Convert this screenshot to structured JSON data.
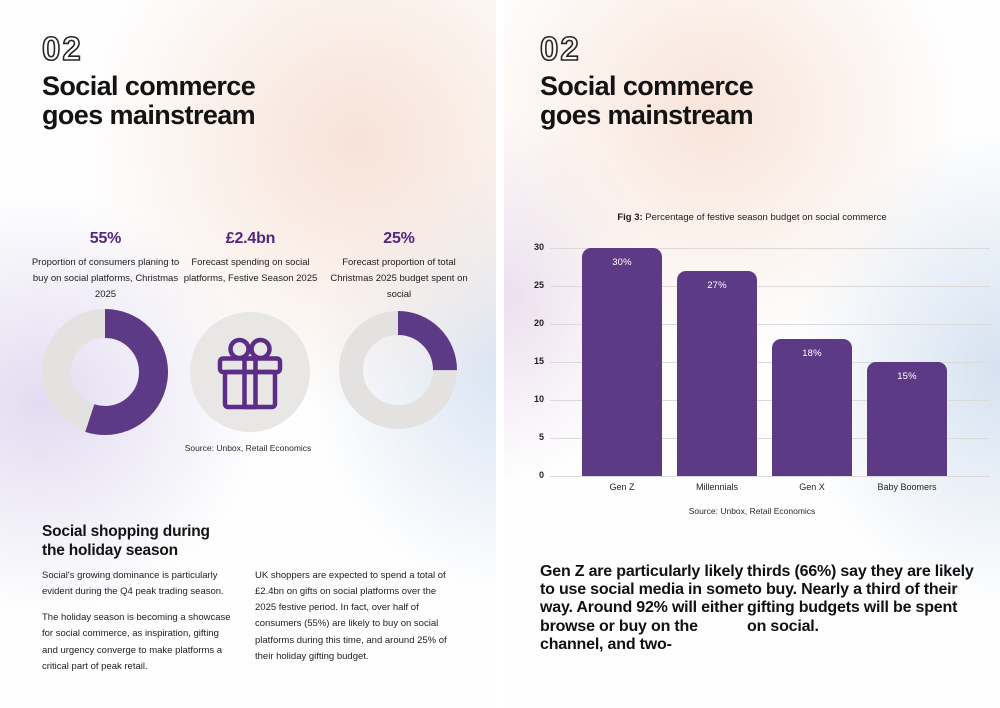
{
  "colors": {
    "accent_purple": "#5C3A85",
    "stat_purple": "#53277D",
    "donut_gray": "#E4E2E0",
    "gift_circle_gray": "#E8E7E5"
  },
  "page_left": {
    "chapter_number": "02",
    "title_line1": "Social commerce",
    "title_line2": "goes mainstream",
    "stats": [
      {
        "value": "55%",
        "description": "Proportion of consumers planing to buy on social platforms, Christmas 2025",
        "percent": 55
      },
      {
        "value": "£2.4bn",
        "description": "Forecast spending on social platforms, Festive Season 2025",
        "icon": "gift-icon"
      },
      {
        "value": "25%",
        "description": "Forecast proportion of total Christmas 2025 budget spent on social",
        "percent": 25
      }
    ],
    "source": "Source: Unbox, Retail Economics",
    "section_heading_line1": "Social shopping during",
    "section_heading_line2": "the holiday season",
    "col1_para1": "Social's growing dominance is particularly evident during the Q4 peak trading season.",
    "col1_para2": "The holiday season is becoming a showcase for social commerce, as inspiration, gifting and urgency converge to make platforms a critical part of peak retail.",
    "col2_para1": "UK shoppers are expected to spend a total of £2.4bn on gifts on social platforms over the 2025 festive period. In fact, over half of consumers (55%) are likely to buy on social platforms during this time, and around 25% of their holiday gifting budget."
  },
  "page_right": {
    "chapter_number": "02",
    "title_line1": "Social commerce",
    "title_line2": "goes mainstream",
    "fig_label": "Fig 3:",
    "fig_caption": " Percentage of festive season budget on social commerce",
    "source": "Source: Unbox, Retail Economics",
    "para_left": "Gen Z are particularly likely to use social media in some way. Around 92% will either browse or buy on the channel, and two-",
    "para_right": "thirds (66%) say they are likely to buy. Nearly a third of their gifting budgets will be spent on social."
  },
  "chart_data": {
    "type": "bar",
    "title": "Fig 3: Percentage of festive season budget on social commerce",
    "categories": [
      "Gen Z",
      "Millennials",
      "Gen X",
      "Baby Boomers"
    ],
    "values": [
      30,
      27,
      18,
      15
    ],
    "labels": [
      "30%",
      "27%",
      "18%",
      "15%"
    ],
    "xlabel": "",
    "ylabel": "",
    "ylim": [
      0,
      30
    ],
    "yticks": [
      0,
      5,
      10,
      15,
      20,
      25,
      30
    ],
    "bar_color": "#5C3A85",
    "grid": true,
    "legend": false,
    "source": "Source: Unbox, Retail Economics"
  }
}
